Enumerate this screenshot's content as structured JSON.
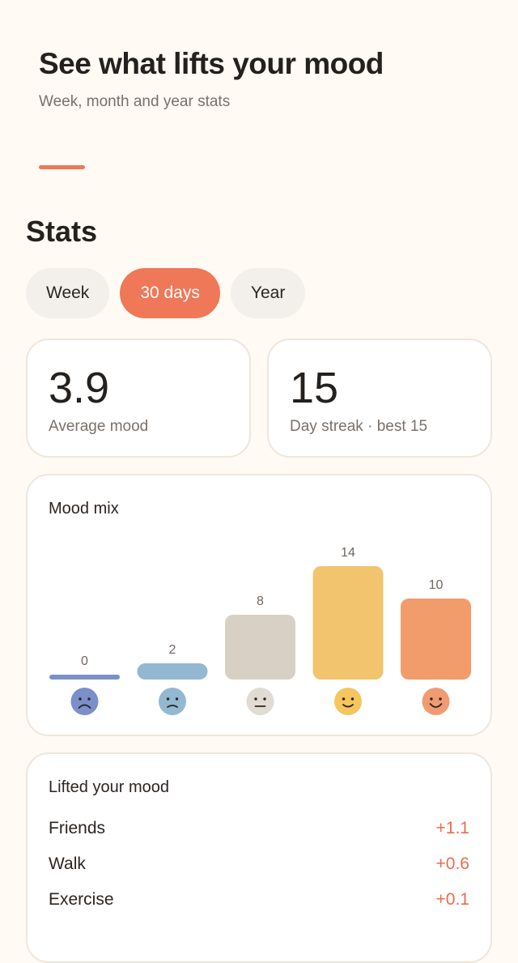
{
  "header": {
    "title": "See what lifts your mood",
    "subtitle": "Week, month and year stats"
  },
  "stats": {
    "title": "Stats",
    "periods": [
      "Week",
      "30 days",
      "Year"
    ],
    "selected_period": "30 days"
  },
  "average_mood": {
    "value": "3.9",
    "label": "Average mood"
  },
  "streak": {
    "value": "15",
    "label": "Day streak · best 15"
  },
  "mood_mix": {
    "title": "Mood mix",
    "chart_data": {
      "type": "bar",
      "title": "Mood mix",
      "categories": [
        "awful",
        "bad",
        "okay",
        "good",
        "great"
      ],
      "values": [
        0,
        2,
        8,
        14,
        10
      ],
      "ylim": [
        0,
        14
      ],
      "colors": [
        "#7b8fcb",
        "#93b8d2",
        "#d9d0c5",
        "#f2c46d",
        "#f29c6b"
      ],
      "icon_colors": [
        "#7b8fcb",
        "#93b8d2",
        "#e1dbd4",
        "#f4c65d",
        "#f19b71"
      ],
      "icons": [
        "very-sad-face-icon",
        "sad-face-icon",
        "neutral-face-icon",
        "happy-face-icon",
        "very-happy-face-icon"
      ]
    }
  },
  "lifted": {
    "title": "Lifted your mood",
    "items": [
      {
        "name": "Friends",
        "delta": "+1.1"
      },
      {
        "name": "Walk",
        "delta": "+0.6"
      },
      {
        "name": "Exercise",
        "delta": "+0.1"
      }
    ]
  }
}
